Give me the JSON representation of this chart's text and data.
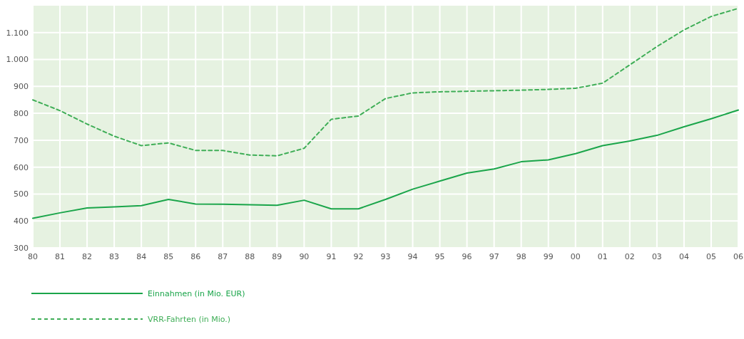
{
  "chart_data": {
    "type": "line",
    "categories": [
      "80",
      "81",
      "82",
      "83",
      "84",
      "85",
      "86",
      "87",
      "88",
      "89",
      "90",
      "91",
      "92",
      "93",
      "94",
      "95",
      "96",
      "97",
      "98",
      "99",
      "00",
      "01",
      "02",
      "03",
      "04",
      "05",
      "06"
    ],
    "series": [
      {
        "name": "Einnahmen (in Mio. EUR)",
        "color": "#1aa54a",
        "line_style": "solid",
        "values": [
          410,
          430,
          448,
          452,
          457,
          480,
          463,
          462,
          460,
          458,
          477,
          445,
          445,
          480,
          518,
          548,
          578,
          593,
          620,
          627,
          650,
          680,
          697,
          718,
          750,
          780,
          812
        ]
      },
      {
        "name": "VRR-Fahrten (in Mio.)",
        "color": "#3fae57",
        "line_style": "dashed",
        "values": [
          850,
          810,
          760,
          715,
          680,
          690,
          662,
          662,
          645,
          642,
          670,
          778,
          790,
          855,
          876,
          880,
          882,
          884,
          886,
          889,
          893,
          912,
          980,
          1048,
          1110,
          1160,
          1190
        ]
      }
    ],
    "ylim": [
      300,
      1200
    ],
    "yticks": [
      300,
      400,
      500,
      600,
      700,
      800,
      900,
      {
        "value": 1000,
        "label": "1.000"
      },
      {
        "value": 1100,
        "label": "1.100"
      }
    ],
    "grid": true,
    "legend": "bottom"
  }
}
